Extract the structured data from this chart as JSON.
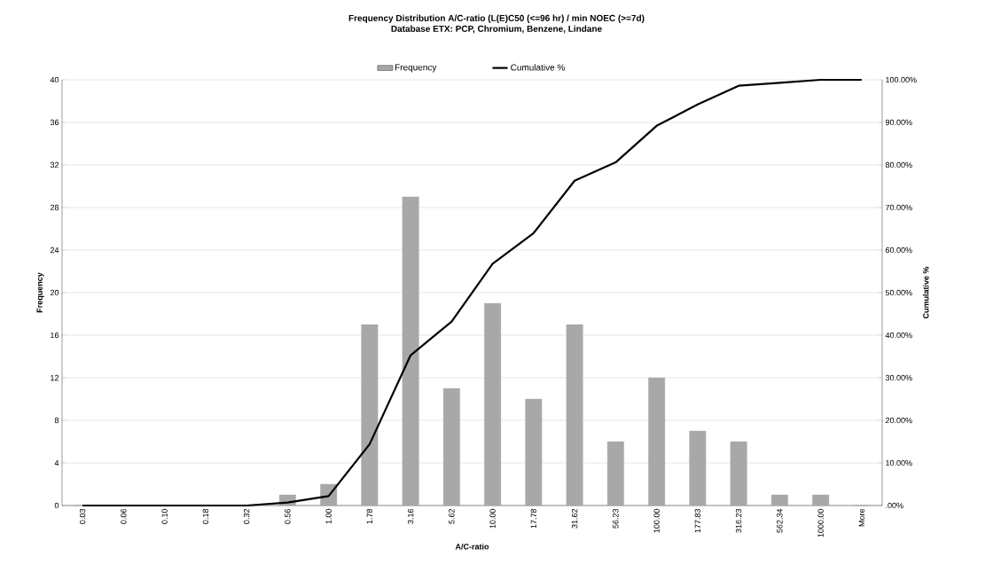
{
  "chart_data": {
    "type": "bar",
    "title": "Frequency Distribution A/C-ratio (L(E)C50 (<=96 hr) / min NOEC (>=7d)",
    "subtitle": "Database ETX: PCP, Chromium, Benzene, Lindane",
    "xlabel": "A/C-ratio",
    "ylabel": "Frequency",
    "y2label": "Cumulative %",
    "categories": [
      "0.03",
      "0.06",
      "0.10",
      "0.18",
      "0.32",
      "0.56",
      "1.00",
      "1.78",
      "3.16",
      "5.62",
      "10.00",
      "17.78",
      "31.62",
      "56.23",
      "100.00",
      "177.83",
      "316.23",
      "562.34",
      "1000.00",
      "More"
    ],
    "series": [
      {
        "name": "Frequency",
        "color": "#a8a8a8",
        "values": [
          0,
          0,
          0,
          0,
          0,
          1,
          2,
          17,
          29,
          11,
          19,
          10,
          17,
          6,
          12,
          7,
          6,
          1,
          1,
          0
        ]
      },
      {
        "name": "Cumulative %",
        "type": "line",
        "axis": "y2",
        "color": "#000000",
        "values": [
          0,
          0,
          0,
          0,
          0,
          0.7,
          2.2,
          14.4,
          35.3,
          43.2,
          56.8,
          64,
          76.3,
          80.6,
          89.2,
          94.2,
          98.6,
          99.3,
          100,
          100
        ]
      }
    ],
    "ylim": [
      0,
      40
    ],
    "yticks": [
      0,
      4,
      8,
      12,
      16,
      20,
      24,
      28,
      32,
      36,
      40
    ],
    "y2lim": [
      0,
      100
    ],
    "y2ticks": [
      {
        "value": 0,
        "label": ".00%"
      },
      {
        "value": 10,
        "label": "10.00%"
      },
      {
        "value": 20,
        "label": "20.00%"
      },
      {
        "value": 30,
        "label": "30.00%"
      },
      {
        "value": 40,
        "label": "40.00%"
      },
      {
        "value": 50,
        "label": "50.00%"
      },
      {
        "value": 60,
        "label": "60.00%"
      },
      {
        "value": 70,
        "label": "70.00%"
      },
      {
        "value": 80,
        "label": "80.00%"
      },
      {
        "value": 90,
        "label": "90.00%"
      },
      {
        "value": 100,
        "label": "100.00%"
      }
    ],
    "grid": "y",
    "legend": "top",
    "marker": "none"
  }
}
